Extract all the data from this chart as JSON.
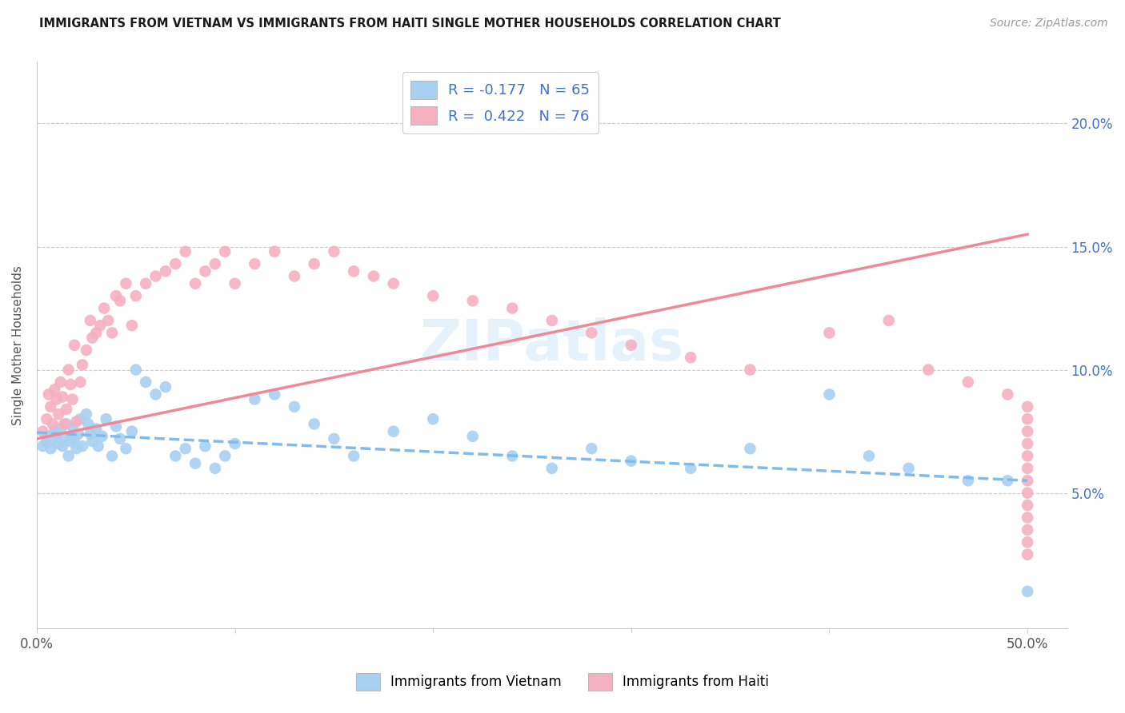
{
  "title": "IMMIGRANTS FROM VIETNAM VS IMMIGRANTS FROM HAITI SINGLE MOTHER HOUSEHOLDS CORRELATION CHART",
  "source": "Source: ZipAtlas.com",
  "ylabel": "Single Mother Households",
  "xlim": [
    0.0,
    0.52
  ],
  "ylim": [
    -0.005,
    0.225
  ],
  "yticks": [
    0.05,
    0.1,
    0.15,
    0.2
  ],
  "ytick_labels": [
    "5.0%",
    "10.0%",
    "15.0%",
    "20.0%"
  ],
  "xtick_left_label": "0.0%",
  "xtick_right_label": "50.0%",
  "xticks_minor": [
    0.0,
    0.1,
    0.2,
    0.3,
    0.4,
    0.5
  ],
  "legend_label1": "R = -0.177   N = 65",
  "legend_label2": "R =  0.422   N = 76",
  "legend_bottom1": "Immigrants from Vietnam",
  "legend_bottom2": "Immigrants from Haiti",
  "color_vietnam": "#A8D0F0",
  "color_haiti": "#F5B0C0",
  "trendline_vietnam_color": "#80BBEE",
  "trendline_haiti_color": "#F08898",
  "watermark_text": "ZIPatlas",
  "watermark_color": "#D0E8F8",
  "background_color": "#ffffff",
  "grid_color": "#cccccc",
  "title_color": "#1a1a1a",
  "source_color": "#999999",
  "axis_label_color": "#555555",
  "right_tick_color": "#4472C4",
  "legend_text_color": "#4472C4",
  "vietnam_x": [
    0.003,
    0.005,
    0.006,
    0.007,
    0.008,
    0.009,
    0.01,
    0.011,
    0.012,
    0.013,
    0.014,
    0.015,
    0.016,
    0.017,
    0.018,
    0.019,
    0.02,
    0.021,
    0.022,
    0.023,
    0.025,
    0.026,
    0.027,
    0.028,
    0.03,
    0.031,
    0.033,
    0.035,
    0.038,
    0.04,
    0.042,
    0.045,
    0.048,
    0.05,
    0.055,
    0.06,
    0.065,
    0.07,
    0.075,
    0.08,
    0.085,
    0.09,
    0.095,
    0.1,
    0.11,
    0.12,
    0.13,
    0.14,
    0.15,
    0.16,
    0.18,
    0.2,
    0.22,
    0.24,
    0.26,
    0.28,
    0.3,
    0.33,
    0.36,
    0.4,
    0.42,
    0.44,
    0.47,
    0.49,
    0.5
  ],
  "vietnam_y": [
    0.069,
    0.071,
    0.073,
    0.068,
    0.072,
    0.075,
    0.074,
    0.07,
    0.076,
    0.069,
    0.073,
    0.078,
    0.065,
    0.071,
    0.077,
    0.072,
    0.068,
    0.074,
    0.08,
    0.069,
    0.082,
    0.078,
    0.074,
    0.071,
    0.076,
    0.069,
    0.073,
    0.08,
    0.065,
    0.077,
    0.072,
    0.068,
    0.075,
    0.1,
    0.095,
    0.09,
    0.093,
    0.065,
    0.068,
    0.062,
    0.069,
    0.06,
    0.065,
    0.07,
    0.088,
    0.09,
    0.085,
    0.078,
    0.072,
    0.065,
    0.075,
    0.08,
    0.073,
    0.065,
    0.06,
    0.068,
    0.063,
    0.06,
    0.068,
    0.09,
    0.065,
    0.06,
    0.055,
    0.055,
    0.01
  ],
  "haiti_x": [
    0.003,
    0.005,
    0.006,
    0.007,
    0.008,
    0.009,
    0.01,
    0.011,
    0.012,
    0.013,
    0.014,
    0.015,
    0.016,
    0.017,
    0.018,
    0.019,
    0.02,
    0.022,
    0.023,
    0.025,
    0.027,
    0.028,
    0.03,
    0.032,
    0.034,
    0.036,
    0.038,
    0.04,
    0.042,
    0.045,
    0.048,
    0.05,
    0.055,
    0.06,
    0.065,
    0.07,
    0.075,
    0.08,
    0.085,
    0.09,
    0.095,
    0.1,
    0.11,
    0.12,
    0.13,
    0.14,
    0.15,
    0.16,
    0.17,
    0.18,
    0.2,
    0.22,
    0.24,
    0.26,
    0.28,
    0.3,
    0.33,
    0.36,
    0.4,
    0.43,
    0.45,
    0.47,
    0.49,
    0.5,
    0.5,
    0.5,
    0.5,
    0.5,
    0.5,
    0.5,
    0.5,
    0.5,
    0.5,
    0.5,
    0.5,
    0.5
  ],
  "haiti_y": [
    0.075,
    0.08,
    0.09,
    0.085,
    0.078,
    0.092,
    0.088,
    0.082,
    0.095,
    0.089,
    0.078,
    0.084,
    0.1,
    0.094,
    0.088,
    0.11,
    0.079,
    0.095,
    0.102,
    0.108,
    0.12,
    0.113,
    0.115,
    0.118,
    0.125,
    0.12,
    0.115,
    0.13,
    0.128,
    0.135,
    0.118,
    0.13,
    0.135,
    0.138,
    0.14,
    0.143,
    0.148,
    0.135,
    0.14,
    0.143,
    0.148,
    0.135,
    0.143,
    0.148,
    0.138,
    0.143,
    0.148,
    0.14,
    0.138,
    0.135,
    0.13,
    0.128,
    0.125,
    0.12,
    0.115,
    0.11,
    0.105,
    0.1,
    0.115,
    0.12,
    0.1,
    0.095,
    0.09,
    0.085,
    0.08,
    0.075,
    0.07,
    0.065,
    0.06,
    0.055,
    0.05,
    0.045,
    0.04,
    0.035,
    0.03,
    0.025
  ],
  "viet_trend_x": [
    0.0,
    0.5
  ],
  "viet_trend_y": [
    0.0745,
    0.055
  ],
  "haiti_trend_x": [
    0.0,
    0.5
  ],
  "haiti_trend_y": [
    0.072,
    0.155
  ]
}
